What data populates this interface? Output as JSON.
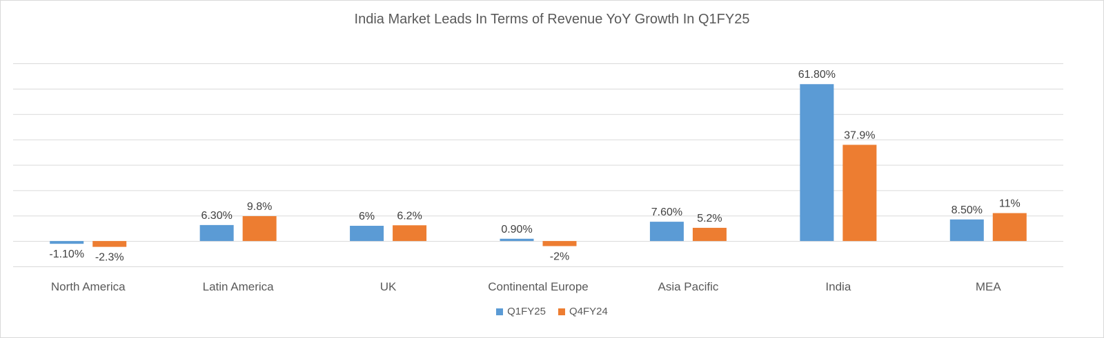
{
  "chart_data": {
    "type": "bar",
    "title": "India Market Leads In Terms of Revenue YoY Growth In Q1FY25",
    "categories": [
      "North America",
      "Latin America",
      "UK",
      "Continental Europe",
      "Asia Pacific",
      "India",
      "MEA"
    ],
    "series": [
      {
        "name": "Q1FY25",
        "color": "#5B9BD5",
        "values": [
          -1.1,
          6.3,
          6,
          0.9,
          7.6,
          61.8,
          8.5
        ],
        "labels": [
          "-1.10%",
          "6.30%",
          "6%",
          "0.90%",
          "7.60%",
          "61.80%",
          "8.50%"
        ]
      },
      {
        "name": "Q4FY24",
        "color": "#ED7D31",
        "values": [
          -2.3,
          9.8,
          6.2,
          -2,
          5.2,
          37.9,
          11
        ],
        "labels": [
          "-2.3%",
          "9.8%",
          "6.2%",
          "-2%",
          "5.2%",
          "37.9%",
          "11%"
        ]
      }
    ],
    "ylim": [
      -10,
      70
    ],
    "grid": true,
    "legend": "bottom-center"
  }
}
